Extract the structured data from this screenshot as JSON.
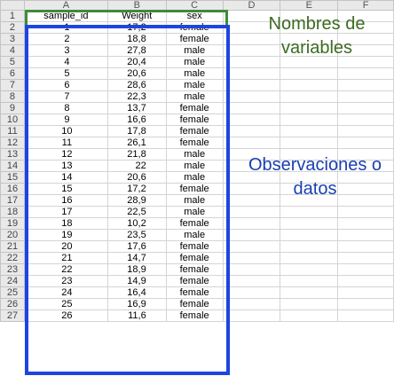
{
  "columns": [
    "",
    "A",
    "B",
    "C",
    "D",
    "E",
    "F"
  ],
  "header_row": {
    "row_number": "1",
    "cells": [
      "sample_id",
      "Weight",
      "sex"
    ]
  },
  "rows": [
    {
      "n": "2",
      "id": "1",
      "weight": "17,2",
      "sex": "female"
    },
    {
      "n": "3",
      "id": "2",
      "weight": "18,8",
      "sex": "female"
    },
    {
      "n": "4",
      "id": "3",
      "weight": "27,8",
      "sex": "male"
    },
    {
      "n": "5",
      "id": "4",
      "weight": "20,4",
      "sex": "male"
    },
    {
      "n": "6",
      "id": "5",
      "weight": "20,6",
      "sex": "male"
    },
    {
      "n": "7",
      "id": "6",
      "weight": "28,6",
      "sex": "male"
    },
    {
      "n": "8",
      "id": "7",
      "weight": "22,3",
      "sex": "male"
    },
    {
      "n": "9",
      "id": "8",
      "weight": "13,7",
      "sex": "female"
    },
    {
      "n": "10",
      "id": "9",
      "weight": "16,6",
      "sex": "female"
    },
    {
      "n": "11",
      "id": "10",
      "weight": "17,8",
      "sex": "female"
    },
    {
      "n": "12",
      "id": "11",
      "weight": "26,1",
      "sex": "female"
    },
    {
      "n": "13",
      "id": "12",
      "weight": "21,8",
      "sex": "male"
    },
    {
      "n": "14",
      "id": "13",
      "weight": "22",
      "sex": "male"
    },
    {
      "n": "15",
      "id": "14",
      "weight": "20,6",
      "sex": "male"
    },
    {
      "n": "16",
      "id": "15",
      "weight": "17,2",
      "sex": "female"
    },
    {
      "n": "17",
      "id": "16",
      "weight": "28,9",
      "sex": "male"
    },
    {
      "n": "18",
      "id": "17",
      "weight": "22,5",
      "sex": "male"
    },
    {
      "n": "19",
      "id": "18",
      "weight": "10,2",
      "sex": "female"
    },
    {
      "n": "20",
      "id": "19",
      "weight": "23,5",
      "sex": "male"
    },
    {
      "n": "21",
      "id": "20",
      "weight": "17,6",
      "sex": "female"
    },
    {
      "n": "22",
      "id": "21",
      "weight": "14,7",
      "sex": "female"
    },
    {
      "n": "23",
      "id": "22",
      "weight": "18,9",
      "sex": "female"
    },
    {
      "n": "24",
      "id": "23",
      "weight": "14,9",
      "sex": "female"
    },
    {
      "n": "25",
      "id": "24",
      "weight": "16,4",
      "sex": "female"
    },
    {
      "n": "26",
      "id": "25",
      "weight": "16,9",
      "sex": "female"
    },
    {
      "n": "27",
      "id": "26",
      "weight": "11,6",
      "sex": "female"
    }
  ],
  "annotations": {
    "variables": "Nombres de variables",
    "observations": "Observaciones o datos"
  },
  "colors": {
    "variables_box": "#3d8c3a",
    "observations_box": "#1e45e0",
    "variables_text": "#3d6b22",
    "observations_text": "#1a3fb3"
  }
}
